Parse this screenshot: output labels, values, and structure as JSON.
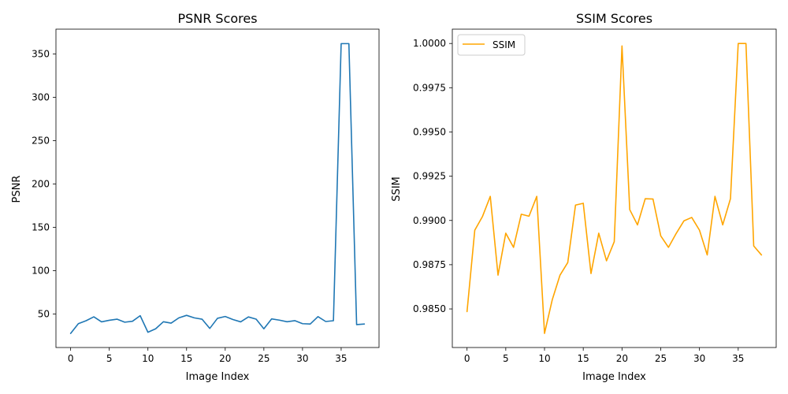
{
  "colors": {
    "psnr_line": "#1f77b4",
    "ssim_line": "#ffa500",
    "axes": "#000000"
  },
  "chart_data": [
    {
      "type": "line",
      "title": "PSNR Scores",
      "xlabel": "Image Index",
      "ylabel": "PSNR",
      "xlim": [
        -1.9,
        39.9
      ],
      "ylim": [
        11.3,
        378.6
      ],
      "x_ticks": [
        0,
        5,
        10,
        15,
        20,
        25,
        30,
        35
      ],
      "y_ticks": [
        50,
        100,
        150,
        200,
        250,
        300,
        350
      ],
      "grid": false,
      "legend": "none",
      "series": [
        {
          "name": "",
          "x": [
            0,
            1,
            2,
            3,
            4,
            5,
            6,
            7,
            8,
            9,
            10,
            11,
            12,
            13,
            14,
            15,
            16,
            17,
            18,
            19,
            20,
            21,
            22,
            23,
            24,
            25,
            26,
            27,
            28,
            29,
            30,
            31,
            32,
            33,
            34,
            35,
            36,
            37,
            38
          ],
          "values": [
            27.5,
            38.8,
            42.2,
            46.7,
            40.9,
            42.7,
            44.0,
            40.5,
            41.6,
            48.0,
            28.9,
            32.9,
            41.0,
            39.4,
            45.5,
            48.4,
            45.5,
            44.0,
            33.3,
            45.0,
            47.1,
            43.6,
            40.9,
            46.6,
            44.0,
            32.9,
            44.3,
            42.9,
            41.0,
            42.3,
            38.8,
            38.4,
            46.9,
            41.3,
            42.2,
            361.9,
            361.9,
            37.7,
            38.4
          ]
        }
      ]
    },
    {
      "type": "line",
      "title": "SSIM Scores",
      "xlabel": "Image Index",
      "ylabel": "SSIM",
      "xlim": [
        -1.9,
        39.9
      ],
      "ylim": [
        0.98282,
        1.00081
      ],
      "x_ticks": [
        0,
        5,
        10,
        15,
        20,
        25,
        30,
        35
      ],
      "y_ticks": [
        0.985,
        0.9875,
        0.99,
        0.9925,
        0.995,
        0.9975,
        1.0
      ],
      "y_tick_labels": [
        "0.9850",
        "0.9875",
        "0.9900",
        "0.9925",
        "0.9950",
        "0.9975",
        "1.0000"
      ],
      "grid": false,
      "legend": "top-left",
      "series": [
        {
          "name": "SSIM",
          "x": [
            0,
            1,
            2,
            3,
            4,
            5,
            6,
            7,
            8,
            9,
            10,
            11,
            12,
            13,
            14,
            15,
            16,
            17,
            18,
            19,
            20,
            21,
            22,
            23,
            24,
            25,
            26,
            27,
            28,
            29,
            30,
            31,
            32,
            33,
            34,
            35,
            36,
            37,
            38
          ],
          "values": [
            0.98485,
            0.98945,
            0.99023,
            0.99136,
            0.98691,
            0.98928,
            0.98848,
            0.99035,
            0.99024,
            0.99136,
            0.98362,
            0.98552,
            0.98691,
            0.98762,
            0.99087,
            0.99097,
            0.987,
            0.98928,
            0.98772,
            0.9888,
            0.99986,
            0.99061,
            0.98975,
            0.99123,
            0.99121,
            0.98913,
            0.98848,
            0.98927,
            0.98998,
            0.99017,
            0.98945,
            0.98805,
            0.99136,
            0.98975,
            0.99123,
            1.0,
            1.0,
            0.98856,
            0.98805
          ]
        }
      ]
    }
  ]
}
